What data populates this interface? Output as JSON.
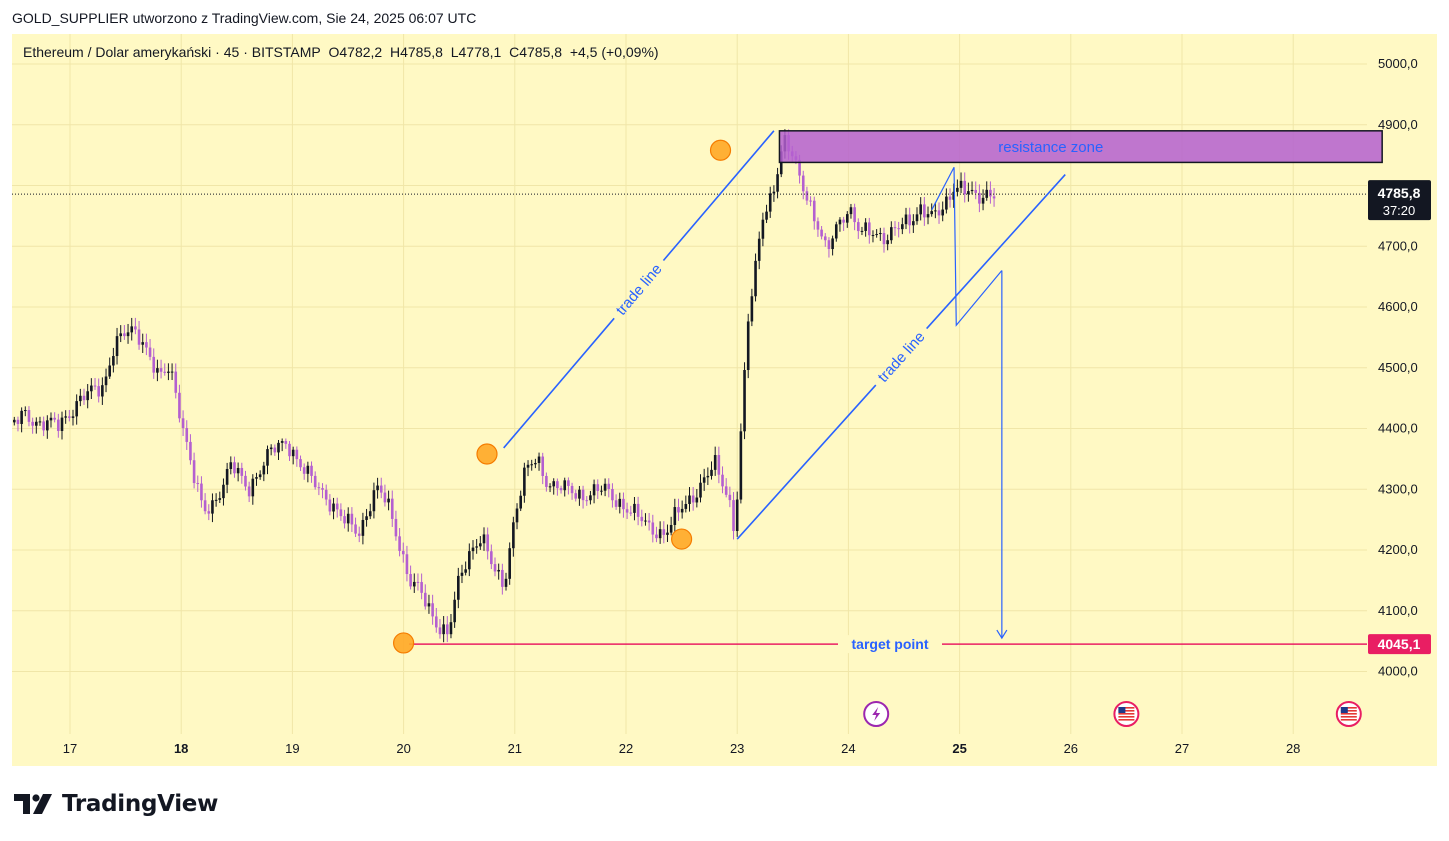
{
  "header": {
    "text": "GOLD_SUPPLIER utworzono z TradingView.com, Sie 24, 2025 06:07 UTC"
  },
  "legend": {
    "symbol": "Ethereum / Dolar amerykański · 45 · BITSTAMP",
    "open": "O4782,2",
    "high": "H4785,8",
    "low": "L4778,1",
    "close": "C4785,8",
    "change": "+4,5 (+0,09%)"
  },
  "footer": {
    "brand": "TradingView"
  },
  "colors": {
    "background": "#fff9c4",
    "up_candle": "#131722",
    "down_candle": "#b45fd0",
    "annotation_blue": "#2962ff",
    "resistance_fill": "#b45fd0",
    "target_line": "#e91e63",
    "pivot_marker": "#ffa726"
  },
  "chart_data": {
    "type": "candlestick",
    "ylim": [
      3890,
      5050
    ],
    "y_ticks": [
      {
        "value": 5000,
        "label": "5000,0"
      },
      {
        "value": 4900,
        "label": "4900,0"
      },
      {
        "value": 4800,
        "label": "4800,0"
      },
      {
        "value": 4700,
        "label": "4700,0"
      },
      {
        "value": 4600,
        "label": "4600,0"
      },
      {
        "value": 4500,
        "label": "4500,0"
      },
      {
        "value": 4400,
        "label": "4400,0"
      },
      {
        "value": 4300,
        "label": "4300,0"
      },
      {
        "value": 4200,
        "label": "4200,0"
      },
      {
        "value": 4100,
        "label": "4100,0"
      },
      {
        "value": 4000,
        "label": "4000,0"
      }
    ],
    "x_ticks": [
      {
        "day": 17,
        "label": "17",
        "bold": false
      },
      {
        "day": 18,
        "label": "18",
        "bold": true
      },
      {
        "day": 19,
        "label": "19",
        "bold": false
      },
      {
        "day": 20,
        "label": "20",
        "bold": false
      },
      {
        "day": 21,
        "label": "21",
        "bold": false
      },
      {
        "day": 22,
        "label": "22",
        "bold": false
      },
      {
        "day": 23,
        "label": "23",
        "bold": false
      },
      {
        "day": 24,
        "label": "24",
        "bold": false
      },
      {
        "day": 25,
        "label": "25",
        "bold": true
      },
      {
        "day": 26,
        "label": "26",
        "bold": false
      },
      {
        "day": 27,
        "label": "27",
        "bold": false
      },
      {
        "day": 28,
        "label": "28",
        "bold": false
      }
    ],
    "price_path": [
      [
        16.4,
        4390
      ],
      [
        16.6,
        4425
      ],
      [
        16.7,
        4410
      ],
      [
        16.9,
        4405
      ],
      [
        17.1,
        4450
      ],
      [
        17.3,
        4470
      ],
      [
        17.4,
        4540
      ],
      [
        17.5,
        4555
      ],
      [
        17.6,
        4560
      ],
      [
        17.7,
        4530
      ],
      [
        17.8,
        4480
      ],
      [
        17.9,
        4500
      ],
      [
        18.0,
        4420
      ],
      [
        18.1,
        4330
      ],
      [
        18.2,
        4260
      ],
      [
        18.3,
        4280
      ],
      [
        18.45,
        4340
      ],
      [
        18.6,
        4300
      ],
      [
        18.8,
        4360
      ],
      [
        18.95,
        4380
      ],
      [
        19.1,
        4330
      ],
      [
        19.3,
        4290
      ],
      [
        19.45,
        4250
      ],
      [
        19.6,
        4230
      ],
      [
        19.75,
        4300
      ],
      [
        19.85,
        4280
      ],
      [
        19.95,
        4220
      ],
      [
        20.05,
        4150
      ],
      [
        20.15,
        4130
      ],
      [
        20.3,
        4080
      ],
      [
        20.4,
        4060
      ],
      [
        20.5,
        4150
      ],
      [
        20.6,
        4200
      ],
      [
        20.7,
        4225
      ],
      [
        20.8,
        4170
      ],
      [
        20.9,
        4140
      ],
      [
        21.0,
        4260
      ],
      [
        21.1,
        4330
      ],
      [
        21.2,
        4350
      ],
      [
        21.3,
        4310
      ],
      [
        21.45,
        4300
      ],
      [
        21.6,
        4290
      ],
      [
        21.8,
        4300
      ],
      [
        22.0,
        4270
      ],
      [
        22.2,
        4240
      ],
      [
        22.35,
        4225
      ],
      [
        22.5,
        4270
      ],
      [
        22.65,
        4300
      ],
      [
        22.8,
        4340
      ],
      [
        22.92,
        4290
      ],
      [
        22.98,
        4230
      ],
      [
        23.05,
        4440
      ],
      [
        23.1,
        4580
      ],
      [
        23.15,
        4640
      ],
      [
        23.22,
        4750
      ],
      [
        23.3,
        4780
      ],
      [
        23.35,
        4810
      ],
      [
        23.42,
        4870
      ],
      [
        23.5,
        4850
      ],
      [
        23.6,
        4800
      ],
      [
        23.7,
        4740
      ],
      [
        23.8,
        4690
      ],
      [
        23.9,
        4740
      ],
      [
        24.0,
        4760
      ],
      [
        24.1,
        4720
      ],
      [
        24.2,
        4730
      ],
      [
        24.35,
        4710
      ],
      [
        24.5,
        4740
      ],
      [
        24.65,
        4760
      ],
      [
        24.75,
        4745
      ],
      [
        24.85,
        4765
      ],
      [
        24.95,
        4800
      ],
      [
        25.05,
        4790
      ],
      [
        25.15,
        4780
      ],
      [
        25.25,
        4790
      ],
      [
        25.32,
        4785.8
      ]
    ],
    "annotations": {
      "resistance_zone": {
        "label": "resistance zone",
        "x_from": 23.38,
        "x_to": 28.8,
        "y_from": 4838,
        "y_to": 4890
      },
      "trade_line_1": {
        "label": "trade line",
        "from": [
          20.9,
          4368
        ],
        "to": [
          23.33,
          4890
        ]
      },
      "trade_line_2": {
        "label": "trade line",
        "from": [
          23.0,
          4218
        ],
        "to": [
          25.95,
          4818
        ]
      },
      "zigzag": [
        [
          24.75,
          4760
        ],
        [
          24.95,
          4830
        ],
        [
          24.97,
          4570
        ],
        [
          25.38,
          4660
        ]
      ],
      "target_arrow": {
        "from": [
          25.38,
          4660
        ],
        "to": [
          25.38,
          4055
        ]
      },
      "target_point": {
        "label": "target point",
        "price": 4045.1,
        "price_label": "4045,1",
        "x_from": 20.05
      },
      "pivots": [
        [
          20.0,
          4047
        ],
        [
          20.75,
          4358
        ],
        [
          22.5,
          4218
        ],
        [
          22.85,
          4858
        ]
      ],
      "current_price": {
        "price": 4785.8,
        "label": "4785,8",
        "countdown": "37:20"
      }
    },
    "events": [
      {
        "day": 24.25,
        "icon": "lightning-icon"
      },
      {
        "day": 26.5,
        "icon": "us-flag-icon"
      },
      {
        "day": 28.5,
        "icon": "us-flag-icon"
      }
    ]
  }
}
